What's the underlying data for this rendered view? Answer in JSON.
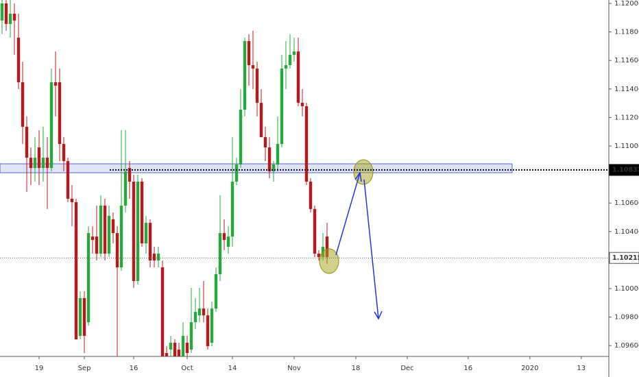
{
  "chart_data": {
    "type": "candlestick",
    "x": [
      0,
      1,
      2,
      3,
      4,
      5,
      6,
      7,
      8,
      9,
      10,
      11,
      12,
      13,
      14,
      15,
      16,
      17,
      18,
      19,
      20,
      21,
      22,
      23,
      24,
      25,
      26,
      27,
      28,
      29,
      30,
      31,
      32,
      33,
      34,
      35,
      36,
      37,
      38,
      39,
      40,
      41,
      42,
      43,
      44,
      45,
      46,
      47,
      48,
      49,
      50,
      51,
      52,
      53,
      54,
      55,
      56,
      57,
      58,
      59,
      60,
      61,
      62,
      63,
      64,
      65,
      66,
      67,
      68,
      69,
      70,
      71,
      72,
      73,
      74,
      75,
      76,
      77,
      78,
      79
    ],
    "open": [
      1.1188,
      1.12,
      1.11856,
      1.11928,
      1.1176,
      1.11447,
      1.11135,
      1.10918,
      1.10846,
      1.1099,
      1.10846,
      1.10918,
      1.10846,
      1.11447,
      1.11447,
      1.11014,
      1.10894,
      1.1063,
      1.10606,
      1.09668,
      1.09933,
      1.09764,
      1.10365,
      1.10365,
      1.10245,
      1.10582,
      1.10245,
      1.10486,
      1.10389,
      1.10149,
      1.10582,
      1.10846,
      1.1075,
      1.10053,
      1.1075,
      1.10317,
      1.10461,
      1.10245,
      1.10197,
      1.10149,
      1.09548,
      1.09572,
      1.0962,
      1.09572,
      1.09524,
      1.0962,
      1.09572,
      1.09764,
      1.09812,
      1.0986,
      1.09812,
      1.0962,
      1.0986,
      1.10101,
      1.10389,
      1.10293,
      1.10365,
      1.1075,
      1.1087,
      1.11255,
      1.11736,
      1.11567,
      1.11543,
      1.11303,
      1.11062,
      1.1099,
      1.10822,
      1.1087,
      1.11014,
      1.11543,
      1.11567,
      1.11639,
      1.11663,
      1.11303,
      1.11279,
      1.1075,
      1.10558,
      1.10245,
      1.10221,
      1.10365
    ],
    "high": [
      1.12024,
      1.12024,
      1.12024,
      1.12,
      1.11928,
      1.11591,
      1.11207,
      1.1099,
      1.11062,
      1.11111,
      1.11135,
      1.11062,
      1.11543,
      1.11663,
      1.11543,
      1.11062,
      1.10918,
      1.10726,
      1.1063,
      1.09981,
      1.09981,
      1.10437,
      1.10437,
      1.10582,
      1.10654,
      1.1063,
      1.10582,
      1.10534,
      1.10437,
      1.11111,
      1.11111,
      1.10894,
      1.10798,
      1.10798,
      1.10774,
      1.1051,
      1.10486,
      1.10293,
      1.10293,
      1.10197,
      1.09596,
      1.09668,
      1.09644,
      1.0962,
      1.09764,
      1.09668,
      1.10005,
      1.09933,
      1.10005,
      1.10053,
      1.0986,
      1.09909,
      1.10149,
      1.10654,
      1.10486,
      1.10437,
      1.11062,
      1.10918,
      1.11399,
      1.1176,
      1.11784,
      1.11808,
      1.11591,
      1.11399,
      1.11135,
      1.11062,
      1.10894,
      1.11207,
      1.11639,
      1.11736,
      1.11784,
      1.1176,
      1.1176,
      1.11399,
      1.11303,
      1.10774,
      1.10582,
      1.10269,
      1.10389,
      1.10461
    ],
    "low": [
      1.11784,
      1.11808,
      1.1176,
      1.11639,
      1.11399,
      1.11014,
      1.10678,
      1.10726,
      1.1075,
      1.10726,
      1.1075,
      1.10558,
      1.10822,
      1.11207,
      1.10894,
      1.10822,
      1.10606,
      1.10437,
      1.09644,
      1.09644,
      1.09548,
      1.0974,
      1.10245,
      1.10197,
      1.10221,
      1.10197,
      1.10221,
      1.10317,
      1.09524,
      1.10125,
      1.10534,
      1.1063,
      1.10005,
      1.10029,
      1.10293,
      1.10245,
      1.10149,
      1.10149,
      1.10149,
      1.095,
      1.09476,
      1.095,
      1.09476,
      1.09476,
      1.095,
      1.095,
      1.09548,
      1.09716,
      1.09764,
      1.09764,
      1.09572,
      1.09596,
      1.09836,
      1.10053,
      1.10269,
      1.10245,
      1.10293,
      1.10726,
      1.10846,
      1.11207,
      1.11423,
      1.11399,
      1.11207,
      1.11062,
      1.10894,
      1.10774,
      1.1075,
      1.10822,
      1.1099,
      1.11399,
      1.11543,
      1.11591,
      1.11279,
      1.11207,
      1.10726,
      1.10534,
      1.10221,
      1.10197,
      1.10197,
      1.10173
    ],
    "close": [
      1.12,
      1.11856,
      1.11928,
      1.1188,
      1.11447,
      1.11135,
      1.10918,
      1.10846,
      1.10918,
      1.10846,
      1.10918,
      1.10846,
      1.11447,
      1.11423,
      1.11014,
      1.10894,
      1.1063,
      1.10606,
      1.09644,
      1.09933,
      1.09668,
      1.10389,
      1.10341,
      1.10245,
      1.10582,
      1.10245,
      1.1051,
      1.10389,
      1.10149,
      1.10582,
      1.10822,
      1.1075,
      1.10053,
      1.1075,
      1.10317,
      1.10461,
      1.10197,
      1.10197,
      1.10245,
      1.09524,
      1.09524,
      1.0962,
      1.09524,
      1.095,
      1.09668,
      1.09548,
      1.09764,
      1.09836,
      1.0986,
      1.09812,
      1.09596,
      1.0986,
      1.10101,
      1.10389,
      1.10341,
      1.10365,
      1.1075,
      1.1087,
      1.11255,
      1.11736,
      1.11567,
      1.11543,
      1.11303,
      1.11062,
      1.1099,
      1.10822,
      1.1087,
      1.11014,
      1.11543,
      1.11567,
      1.11639,
      1.11663,
      1.11303,
      1.11279,
      1.1075,
      1.10558,
      1.10245,
      1.10221,
      1.10293,
      1.10221
    ],
    "up_color": "#26a83c",
    "down_color": "#b8191c",
    "xlim": [
      -0.5,
      147.5
    ],
    "ylim": [
      1.09524,
      1.12024
    ],
    "xticks": [
      {
        "value": 9,
        "label": "19"
      },
      {
        "value": 20,
        "label": "Sep"
      },
      {
        "value": 32,
        "label": "16"
      },
      {
        "value": 45,
        "label": "Oct"
      },
      {
        "value": 56,
        "label": "14"
      },
      {
        "value": 71,
        "label": "Nov"
      },
      {
        "value": 86,
        "label": "18"
      },
      {
        "value": 98.5,
        "label": "Dec"
      },
      {
        "value": 113.3,
        "label": "16"
      },
      {
        "value": 128.3,
        "label": "2020"
      },
      {
        "value": 140.8,
        "label": "13"
      }
    ],
    "yticks": [
      {
        "value": 1.12,
        "label": "1.12000"
      },
      {
        "value": 1.118,
        "label": "1.11800"
      },
      {
        "value": 1.116,
        "label": "1.11600"
      },
      {
        "value": 1.114,
        "label": "1.11400"
      },
      {
        "value": 1.112,
        "label": "1.11200"
      },
      {
        "value": 1.11,
        "label": "1.11000"
      },
      {
        "value": 1.106,
        "label": "1.10600"
      },
      {
        "value": 1.104,
        "label": "1.10400"
      },
      {
        "value": 1.1,
        "label": "1.10000"
      },
      {
        "value": 1.098,
        "label": "1.09800"
      },
      {
        "value": 1.096,
        "label": "1.09600"
      }
    ],
    "price_lines": [
      {
        "value": 1.10832,
        "color": "#000000"
      },
      {
        "value": 1.10215,
        "color": "#555555"
      }
    ]
  }
}
